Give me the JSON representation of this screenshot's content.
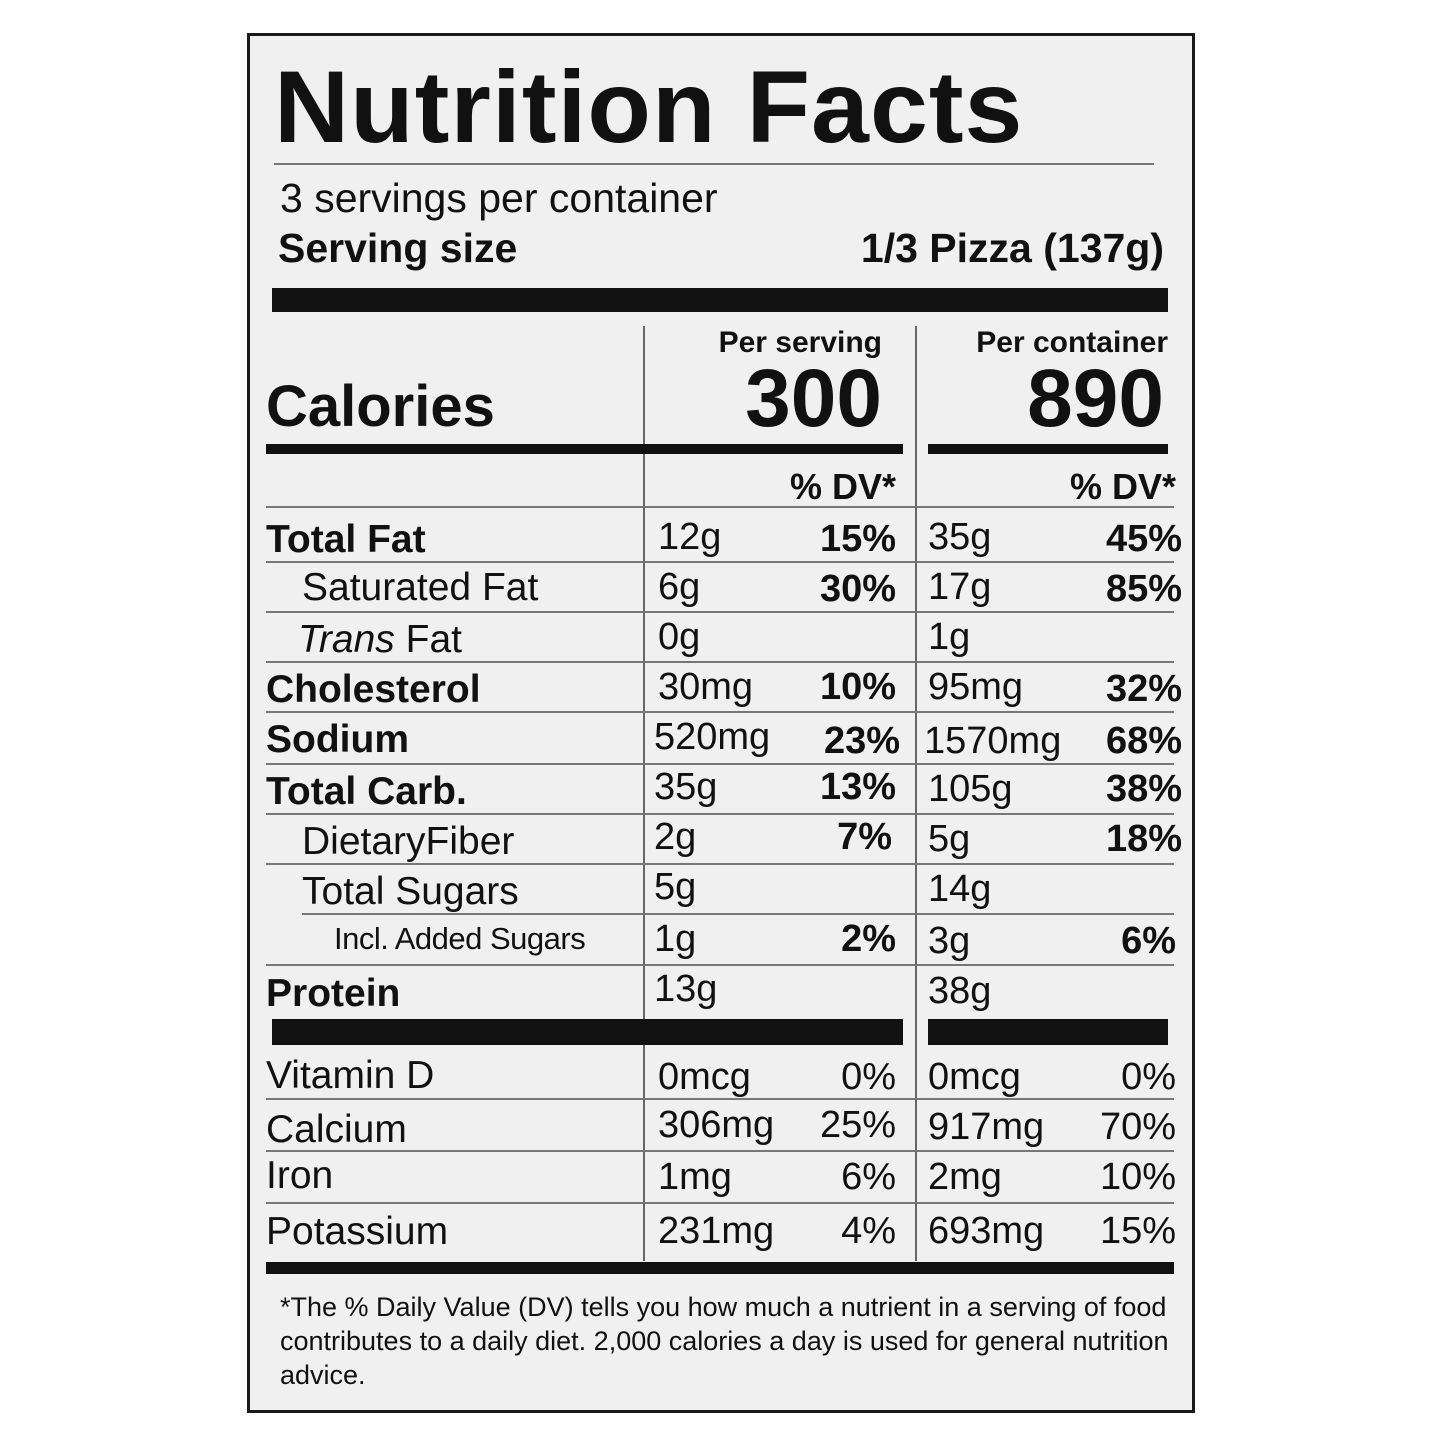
{
  "title": "Nutrition Facts",
  "servings_per_container": "3 servings per container",
  "serving_size_label": "Serving size",
  "serving_size_value": "1/3 Pizza (137g)",
  "calories": {
    "label": "Calories",
    "per_serving_header": "Per serving",
    "per_serving_value": "300",
    "per_container_header": "Per container",
    "per_container_value": "890"
  },
  "dv_header": "% DV*",
  "nutrients": [
    {
      "label": "Total Fat",
      "serving_amount": "12g",
      "serving_dv": "15%",
      "container_amount": "35g",
      "container_dv": "45%"
    },
    {
      "label": "Saturated Fat",
      "serving_amount": "6g",
      "serving_dv": "30%",
      "container_amount": "17g",
      "container_dv": "85%"
    },
    {
      "label_italic": "Trans",
      "label_rest": " Fat",
      "serving_amount": "0g",
      "serving_dv": "",
      "container_amount": "1g",
      "container_dv": ""
    },
    {
      "label": "Cholesterol",
      "serving_amount": "30mg",
      "serving_dv": "10%",
      "container_amount": "95mg",
      "container_dv": "32%"
    },
    {
      "label": "Sodium",
      "serving_amount": "520mg",
      "serving_dv": "23%",
      "container_amount": "1570mg",
      "container_dv": "68%"
    },
    {
      "label": "Total Carb.",
      "serving_amount": "35g",
      "serving_dv": "13%",
      "container_amount": "105g",
      "container_dv": "38%"
    },
    {
      "label": "DietaryFiber",
      "serving_amount": "2g",
      "serving_dv": "7%",
      "container_amount": "5g",
      "container_dv": "18%"
    },
    {
      "label": "Total Sugars",
      "serving_amount": "5g",
      "serving_dv": "",
      "container_amount": "14g",
      "container_dv": ""
    },
    {
      "label": "Incl. Added Sugars",
      "serving_amount": "1g",
      "serving_dv": "2%",
      "container_amount": "3g",
      "container_dv": "6%"
    },
    {
      "label": "Protein",
      "serving_amount": "13g",
      "serving_dv": "",
      "container_amount": "38g",
      "container_dv": ""
    }
  ],
  "vitamins": [
    {
      "label": "Vitamin D",
      "serving_amount": "0mcg",
      "serving_dv": "0%",
      "container_amount": "0mcg",
      "container_dv": "0%"
    },
    {
      "label": "Calcium",
      "serving_amount": "306mg",
      "serving_dv": "25%",
      "container_amount": "917mg",
      "container_dv": "70%"
    },
    {
      "label": "Iron",
      "serving_amount": "1mg",
      "serving_dv": "6%",
      "container_amount": "2mg",
      "container_dv": "10%"
    },
    {
      "label": "Potassium",
      "serving_amount": "231mg",
      "serving_dv": "4%",
      "container_amount": "693mg",
      "container_dv": "15%"
    }
  ],
  "footnote": "*The % Daily Value (DV) tells you how much a nutrient in a serving of food contributes to a daily diet. 2,000 calories a day is used for general nutrition advice."
}
